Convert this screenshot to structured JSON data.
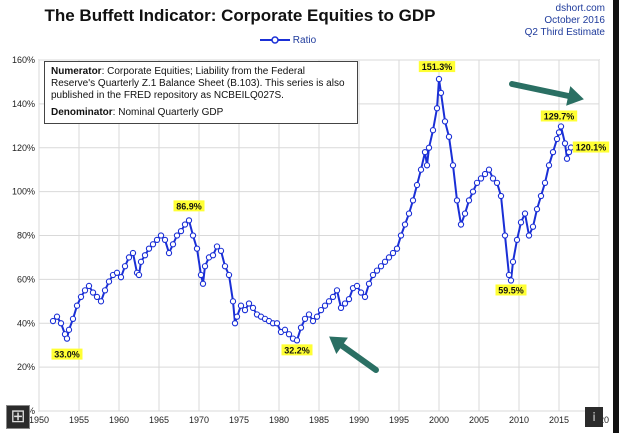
{
  "chart_data": {
    "type": "line",
    "title": "The Buffett Indicator: Corporate Equities to GDP",
    "source_lines": [
      "dshort.com",
      "October 2016",
      "Q2 Third Estimate"
    ],
    "legend": [
      "Ratio"
    ],
    "ylim": [
      0,
      160
    ],
    "xlim": [
      1950,
      2020
    ],
    "y_ticks": [
      "0%",
      "20%",
      "40%",
      "60%",
      "80%",
      "100%",
      "120%",
      "140%",
      "160%"
    ],
    "x_ticks": [
      "1950",
      "1955",
      "1960",
      "1965",
      "1970",
      "1975",
      "1980",
      "1985",
      "1990",
      "1995",
      "2000",
      "2005",
      "2010",
      "2015",
      "2020"
    ],
    "grid": true,
    "legend_position": "top-center",
    "annotation_box": {
      "numerator_label": "Numerator",
      "numerator_text": ": Corporate Equities; Liability from the Federal Reserve's Quarterly Z.1 Balance Sheet (B.103). This series is also published in the FRED repository as NCBEILQ027S.",
      "denominator_label": "Denominator",
      "denominator_text": ": Nominal Quarterly GDP"
    },
    "labels": [
      {
        "text": "33.0%",
        "x": 1953.5,
        "y": 33.0
      },
      {
        "text": "86.9%",
        "x": 1968.75,
        "y": 86.9
      },
      {
        "text": "32.2%",
        "x": 1982.25,
        "y": 32.2
      },
      {
        "text": "151.3%",
        "x": 2000.0,
        "y": 151.3
      },
      {
        "text": "59.5%",
        "x": 2009.0,
        "y": 59.5
      },
      {
        "text": "129.7%",
        "x": 2015.0,
        "y": 129.7
      },
      {
        "text": "120.1%",
        "x": 2016.25,
        "y": 120.1
      }
    ],
    "series": [
      {
        "name": "Ratio",
        "x": [
          1951.75,
          1952.25,
          1952.75,
          1953.25,
          1953.5,
          1953.75,
          1954.25,
          1954.75,
          1955.25,
          1955.75,
          1956.25,
          1956.75,
          1957.25,
          1957.75,
          1958.25,
          1958.75,
          1959.25,
          1959.75,
          1960.25,
          1960.75,
          1961.25,
          1961.75,
          1962.25,
          1962.5,
          1962.75,
          1963.25,
          1963.75,
          1964.25,
          1964.75,
          1965.25,
          1965.75,
          1966.25,
          1966.75,
          1967.25,
          1967.75,
          1968.25,
          1968.75,
          1969.25,
          1969.75,
          1970.25,
          1970.5,
          1970.75,
          1971.25,
          1971.75,
          1972.25,
          1972.75,
          1973.25,
          1973.75,
          1974.25,
          1974.5,
          1974.75,
          1975.25,
          1975.75,
          1976.25,
          1976.75,
          1977.25,
          1977.75,
          1978.25,
          1978.75,
          1979.25,
          1979.75,
          1980.25,
          1980.75,
          1981.25,
          1981.75,
          1982.25,
          1982.75,
          1983.25,
          1983.75,
          1984.25,
          1984.75,
          1985.25,
          1985.75,
          1986.25,
          1986.75,
          1987.25,
          1987.75,
          1988.25,
          1988.75,
          1989.25,
          1989.75,
          1990.25,
          1990.75,
          1991.25,
          1991.75,
          1992.25,
          1992.75,
          1993.25,
          1993.75,
          1994.25,
          1994.75,
          1995.25,
          1995.75,
          1996.25,
          1996.75,
          1997.25,
          1997.75,
          1998.25,
          1998.5,
          1998.75,
          1999.25,
          1999.75,
          2000.0,
          2000.25,
          2000.75,
          2001.25,
          2001.75,
          2002.25,
          2002.75,
          2003.25,
          2003.75,
          2004.25,
          2004.75,
          2005.25,
          2005.75,
          2006.25,
          2006.75,
          2007.25,
          2007.75,
          2008.25,
          2008.75,
          2009.0,
          2009.25,
          2009.75,
          2010.25,
          2010.75,
          2011.25,
          2011.75,
          2012.25,
          2012.75,
          2013.25,
          2013.75,
          2014.25,
          2014.75,
          2015.0,
          2015.25,
          2015.75,
          2016.0,
          2016.25,
          2016.5
        ],
        "values": [
          41,
          43,
          40,
          35,
          33,
          37,
          42,
          48,
          52,
          55,
          57,
          54,
          52,
          50,
          55,
          59,
          62,
          63,
          61,
          66,
          70,
          72,
          63,
          62,
          68,
          71,
          74,
          76,
          78,
          80,
          78,
          72,
          76,
          80,
          82,
          85,
          86.9,
          80,
          74,
          62,
          58,
          66,
          70,
          71,
          75,
          73,
          66,
          62,
          50,
          40,
          43,
          48,
          46,
          49,
          47,
          44,
          43,
          42,
          41,
          40,
          40,
          36,
          37,
          35,
          33,
          32.2,
          38,
          42,
          44,
          41,
          43,
          46,
          48,
          50,
          52,
          55,
          47,
          49,
          51,
          56,
          57,
          54,
          52,
          58,
          62,
          64,
          66,
          68,
          70,
          72,
          74,
          80,
          85,
          90,
          96,
          103,
          110,
          118,
          112,
          120,
          128,
          138,
          151.3,
          145,
          132,
          125,
          112,
          96,
          85,
          90,
          96,
          100,
          104,
          106,
          108,
          110,
          106,
          104,
          98,
          80,
          62,
          59.5,
          68,
          78,
          86,
          90,
          80,
          84,
          92,
          98,
          104,
          112,
          118,
          124,
          127,
          129.7,
          122,
          115,
          118,
          120.1
        ]
      }
    ]
  },
  "labels_ui": {
    "expand_icon": "⊞",
    "info_icon": "ⅰ"
  }
}
